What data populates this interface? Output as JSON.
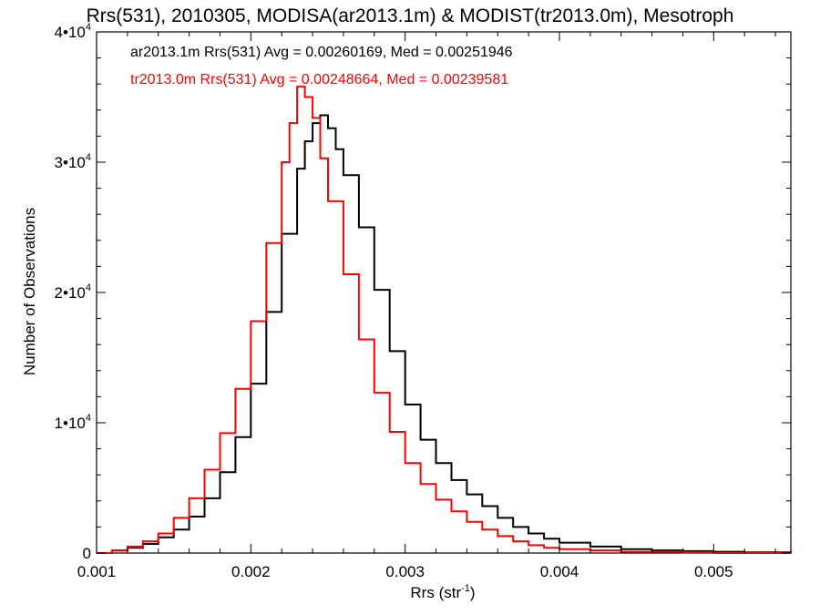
{
  "chart_data": {
    "type": "line",
    "title": "Rrs(531), 2010305, MODISA(ar2013.1m) & MODIST(tr2013.0m), Mesotroph",
    "xlabel": "Rrs (str",
    "xlabel_sup": "-1",
    "xlabel_close": ")",
    "ylabel": "Number of Observations",
    "xlim": [
      0.001,
      0.0055
    ],
    "ylim": [
      0,
      40000
    ],
    "grid": false,
    "legend_position": "top-left",
    "x_ticks": [
      {
        "value": 0.001,
        "label": "0.001"
      },
      {
        "value": 0.002,
        "label": "0.002"
      },
      {
        "value": 0.003,
        "label": "0.003"
      },
      {
        "value": 0.004,
        "label": "0.004"
      },
      {
        "value": 0.005,
        "label": "0.005"
      }
    ],
    "y_ticks": [
      {
        "value": 0,
        "label": "0",
        "sup": ""
      },
      {
        "value": 10000,
        "label": "1•10",
        "sup": "4"
      },
      {
        "value": 20000,
        "label": "2•10",
        "sup": "4"
      },
      {
        "value": 30000,
        "label": "3•10",
        "sup": "4"
      },
      {
        "value": 40000,
        "label": "4•10",
        "sup": "4"
      }
    ],
    "series": [
      {
        "name": "ar2013.1m Rrs(531)",
        "label": "ar2013.1m Rrs(531) Avg = 0.00260169, Med = 0.00251946",
        "color": "#000000",
        "x": [
          0.001,
          0.0011,
          0.0012,
          0.0013,
          0.0014,
          0.0015,
          0.0016,
          0.0017,
          0.0018,
          0.0019,
          0.002,
          0.0021,
          0.0022,
          0.0023,
          0.00235,
          0.0024,
          0.00245,
          0.0025,
          0.00255,
          0.0026,
          0.0027,
          0.0028,
          0.0029,
          0.003,
          0.0031,
          0.0032,
          0.0033,
          0.0034,
          0.0035,
          0.0036,
          0.0037,
          0.0038,
          0.0039,
          0.004,
          0.0042,
          0.0044,
          0.0046,
          0.0048,
          0.005,
          0.0052,
          0.0055
        ],
        "y": [
          0,
          200,
          400,
          700,
          1200,
          1800,
          2800,
          4200,
          6200,
          8900,
          13000,
          18500,
          24500,
          29500,
          31600,
          33000,
          33600,
          32600,
          31000,
          29000,
          25000,
          20200,
          15500,
          11400,
          8700,
          6900,
          5600,
          4500,
          3600,
          2700,
          2000,
          1500,
          1100,
          800,
          500,
          300,
          200,
          150,
          100,
          50,
          0
        ]
      },
      {
        "name": "tr2013.0m Rrs(531)",
        "label": "tr2013.0m Rrs(531) Avg = 0.00248664, Med = 0.00239581",
        "color": "#ff0000",
        "x": [
          0.001,
          0.0011,
          0.0012,
          0.0013,
          0.0014,
          0.0015,
          0.0016,
          0.0017,
          0.0018,
          0.0019,
          0.002,
          0.0021,
          0.0022,
          0.00225,
          0.0023,
          0.00235,
          0.0024,
          0.00245,
          0.0025,
          0.0026,
          0.0027,
          0.0028,
          0.0029,
          0.003,
          0.0031,
          0.0032,
          0.0033,
          0.0034,
          0.0035,
          0.0036,
          0.0037,
          0.0038,
          0.0039,
          0.004,
          0.0042,
          0.0044,
          0.0046,
          0.0048,
          0.005,
          0.0052,
          0.0055
        ],
        "y": [
          0,
          200,
          500,
          900,
          1500,
          2700,
          4200,
          6400,
          9200,
          12600,
          17800,
          23800,
          30000,
          33000,
          35800,
          35000,
          33400,
          30300,
          27000,
          21400,
          16400,
          12300,
          9300,
          6900,
          5300,
          4100,
          3200,
          2400,
          1800,
          1300,
          900,
          600,
          400,
          300,
          200,
          100,
          100,
          50,
          0,
          0,
          0
        ]
      }
    ]
  }
}
